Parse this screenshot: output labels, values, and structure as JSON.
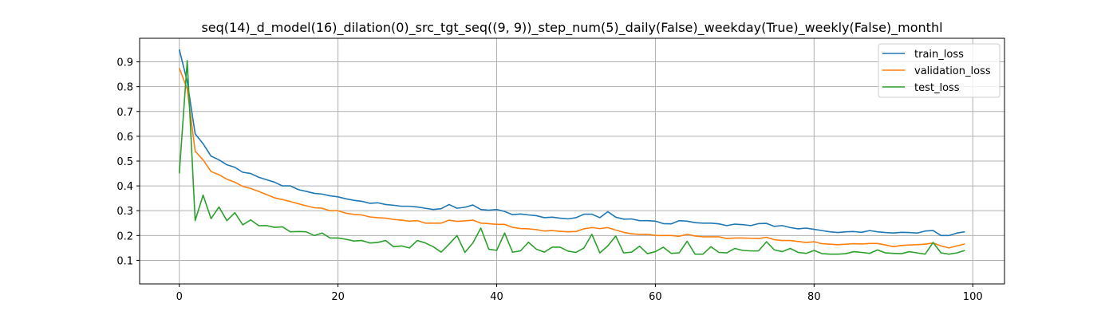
{
  "chart_data": {
    "type": "line",
    "title": "seq(14)_d_model(16)_dilation(0)_src_tgt_seq((9, 9))_step_num(5)_daily(False)_weekday(True)_weekly(False)_monthl",
    "xlabel": "",
    "ylabel": "",
    "xlim": [
      -5,
      104
    ],
    "ylim": [
      0.005,
      0.995
    ],
    "xticks": [
      0,
      20,
      40,
      60,
      80,
      100
    ],
    "yticks": [
      0.1,
      0.2,
      0.3,
      0.4,
      0.5,
      0.6,
      0.7,
      0.8,
      0.9
    ],
    "grid": true,
    "legend_position": "top-right",
    "series": [
      {
        "name": "train_loss",
        "color": "#1f77b4",
        "values": [
          0.95,
          0.82,
          0.61,
          0.57,
          0.52,
          0.505,
          0.485,
          0.475,
          0.455,
          0.45,
          0.435,
          0.425,
          0.415,
          0.4,
          0.4,
          0.385,
          0.378,
          0.37,
          0.367,
          0.36,
          0.356,
          0.348,
          0.342,
          0.338,
          0.33,
          0.332,
          0.325,
          0.322,
          0.318,
          0.318,
          0.315,
          0.31,
          0.305,
          0.308,
          0.325,
          0.31,
          0.314,
          0.323,
          0.305,
          0.302,
          0.305,
          0.297,
          0.284,
          0.287,
          0.283,
          0.28,
          0.272,
          0.274,
          0.27,
          0.267,
          0.272,
          0.286,
          0.286,
          0.272,
          0.296,
          0.274,
          0.266,
          0.267,
          0.26,
          0.26,
          0.258,
          0.248,
          0.247,
          0.26,
          0.258,
          0.252,
          0.25,
          0.25,
          0.247,
          0.24,
          0.246,
          0.244,
          0.24,
          0.248,
          0.249,
          0.237,
          0.24,
          0.232,
          0.227,
          0.23,
          0.225,
          0.22,
          0.215,
          0.212,
          0.215,
          0.216,
          0.213,
          0.22,
          0.215,
          0.212,
          0.21,
          0.213,
          0.212,
          0.21,
          0.218,
          0.22,
          0.2,
          0.2,
          0.21,
          0.215
        ]
      },
      {
        "name": "validation_loss",
        "color": "#ff7f0e",
        "values": [
          0.875,
          0.79,
          0.54,
          0.505,
          0.458,
          0.445,
          0.427,
          0.415,
          0.398,
          0.39,
          0.378,
          0.365,
          0.352,
          0.345,
          0.337,
          0.328,
          0.32,
          0.312,
          0.31,
          0.3,
          0.3,
          0.29,
          0.285,
          0.283,
          0.275,
          0.272,
          0.27,
          0.265,
          0.262,
          0.258,
          0.26,
          0.25,
          0.25,
          0.25,
          0.262,
          0.257,
          0.259,
          0.262,
          0.25,
          0.248,
          0.245,
          0.245,
          0.233,
          0.228,
          0.227,
          0.224,
          0.218,
          0.22,
          0.217,
          0.215,
          0.216,
          0.227,
          0.232,
          0.228,
          0.232,
          0.222,
          0.213,
          0.207,
          0.205,
          0.205,
          0.2,
          0.2,
          0.2,
          0.197,
          0.205,
          0.198,
          0.195,
          0.195,
          0.195,
          0.188,
          0.19,
          0.19,
          0.189,
          0.188,
          0.193,
          0.183,
          0.18,
          0.18,
          0.176,
          0.172,
          0.175,
          0.167,
          0.165,
          0.163,
          0.165,
          0.167,
          0.166,
          0.168,
          0.168,
          0.162,
          0.155,
          0.16,
          0.162,
          0.163,
          0.165,
          0.17,
          0.158,
          0.15,
          0.158,
          0.166
        ]
      },
      {
        "name": "test_loss",
        "color": "#2ca02c",
        "values": [
          0.45,
          0.905,
          0.26,
          0.363,
          0.268,
          0.315,
          0.26,
          0.292,
          0.243,
          0.263,
          0.24,
          0.24,
          0.233,
          0.235,
          0.215,
          0.216,
          0.215,
          0.2,
          0.21,
          0.19,
          0.19,
          0.185,
          0.178,
          0.18,
          0.17,
          0.172,
          0.18,
          0.155,
          0.158,
          0.15,
          0.18,
          0.17,
          0.155,
          0.133,
          0.165,
          0.2,
          0.132,
          0.17,
          0.23,
          0.145,
          0.14,
          0.21,
          0.133,
          0.138,
          0.173,
          0.145,
          0.133,
          0.153,
          0.153,
          0.137,
          0.132,
          0.15,
          0.205,
          0.13,
          0.158,
          0.198,
          0.13,
          0.133,
          0.157,
          0.127,
          0.135,
          0.153,
          0.128,
          0.13,
          0.177,
          0.125,
          0.125,
          0.155,
          0.132,
          0.13,
          0.148,
          0.14,
          0.138,
          0.138,
          0.175,
          0.142,
          0.135,
          0.148,
          0.132,
          0.128,
          0.14,
          0.127,
          0.125,
          0.125,
          0.127,
          0.135,
          0.132,
          0.128,
          0.142,
          0.13,
          0.128,
          0.127,
          0.135,
          0.13,
          0.125,
          0.172,
          0.13,
          0.125,
          0.13,
          0.14
        ]
      }
    ]
  }
}
